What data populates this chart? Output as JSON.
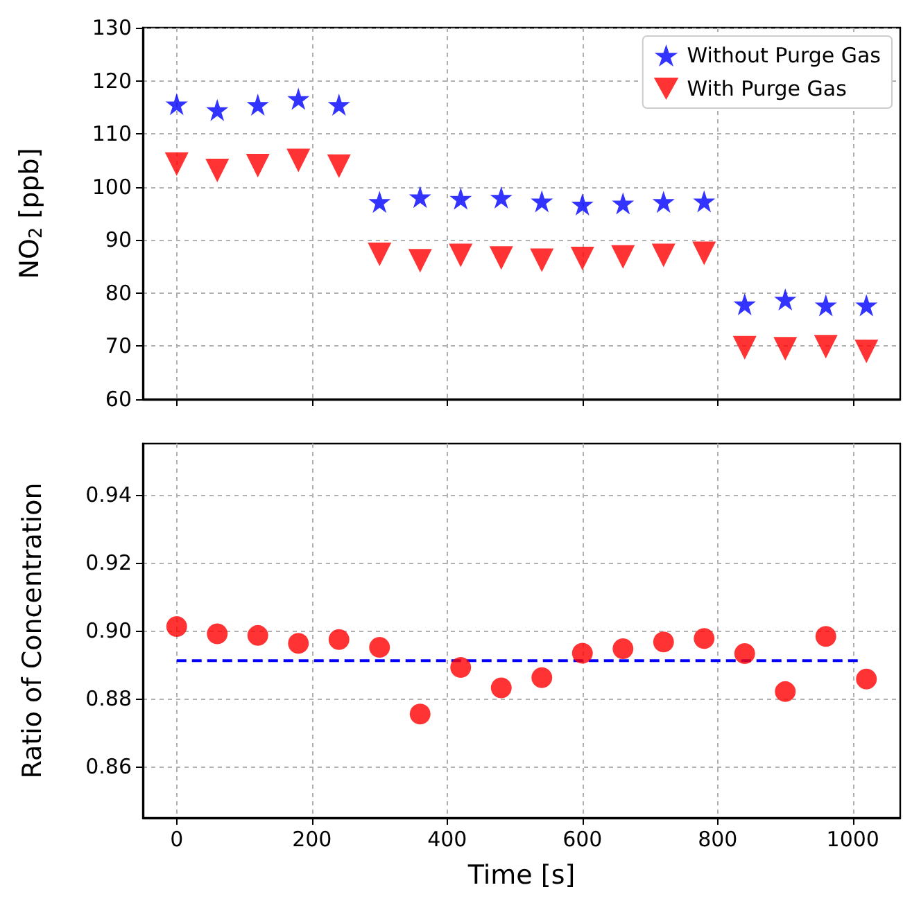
{
  "chart_data": [
    {
      "type": "scatter",
      "ylabel": "NO$_{2}$ [ppb]",
      "x": [
        0,
        60,
        120,
        180,
        240,
        300,
        360,
        420,
        480,
        540,
        600,
        660,
        720,
        780,
        840,
        900,
        960,
        1020
      ],
      "series": [
        {
          "name": "Without Purge Gas",
          "color": "#0000ff",
          "marker": "star",
          "values": [
            115.6,
            114.5,
            115.5,
            116.6,
            115.5,
            97.2,
            98.1,
            97.8,
            98.0,
            97.3,
            96.7,
            96.9,
            97.2,
            97.3,
            77.9,
            78.8,
            77.7,
            77.7
          ]
        },
        {
          "name": "With Purge Gas",
          "color": "#ff0000",
          "marker": "triangle",
          "values": [
            104.3,
            103.1,
            104.0,
            105.0,
            103.9,
            87.3,
            86.1,
            87.1,
            86.6,
            86.2,
            86.5,
            86.8,
            87.1,
            87.5,
            69.7,
            69.5,
            69.9,
            69.0
          ]
        }
      ],
      "xlim": [
        -50,
        1070
      ],
      "xticks": [
        0,
        200,
        400,
        600,
        800,
        1000
      ],
      "ylim": [
        60,
        130
      ],
      "yticks": [
        60,
        70,
        80,
        90,
        100,
        110,
        120,
        130
      ],
      "tick_labels": "y",
      "grid": true,
      "legend": "top right"
    },
    {
      "type": "scatter",
      "xlabel": "Time [s]",
      "ylabel": "Ratio of Concentration",
      "series": [
        {
          "color": "#ff0000",
          "marker": "circle",
          "x": [
            0,
            60,
            120,
            180,
            240,
            300,
            360,
            420,
            480,
            540,
            600,
            660,
            720,
            780,
            840,
            900,
            960,
            1020
          ],
          "values": [
            0.9012,
            0.8991,
            0.8986,
            0.8963,
            0.8974,
            0.8951,
            0.8755,
            0.8892,
            0.8832,
            0.8862,
            0.8934,
            0.8947,
            0.8967,
            0.8977,
            0.8933,
            0.8821,
            0.8983,
            0.8858
          ]
        },
        {
          "type": "line",
          "color": "#0000ff",
          "marker": "none",
          "line_style": "dashed",
          "x": [
            0,
            1013
          ],
          "values": [
            0.8912,
            0.8912
          ]
        }
      ],
      "xlim": [
        -50,
        1070
      ],
      "xticks": [
        0,
        200,
        400,
        600,
        800,
        1000
      ],
      "ylim": [
        0.845,
        0.955
      ],
      "yticks": [
        0.86,
        0.88,
        {
          "value": 0.9,
          "label": "0.90"
        },
        0.92,
        0.94
      ],
      "grid": true
    }
  ]
}
